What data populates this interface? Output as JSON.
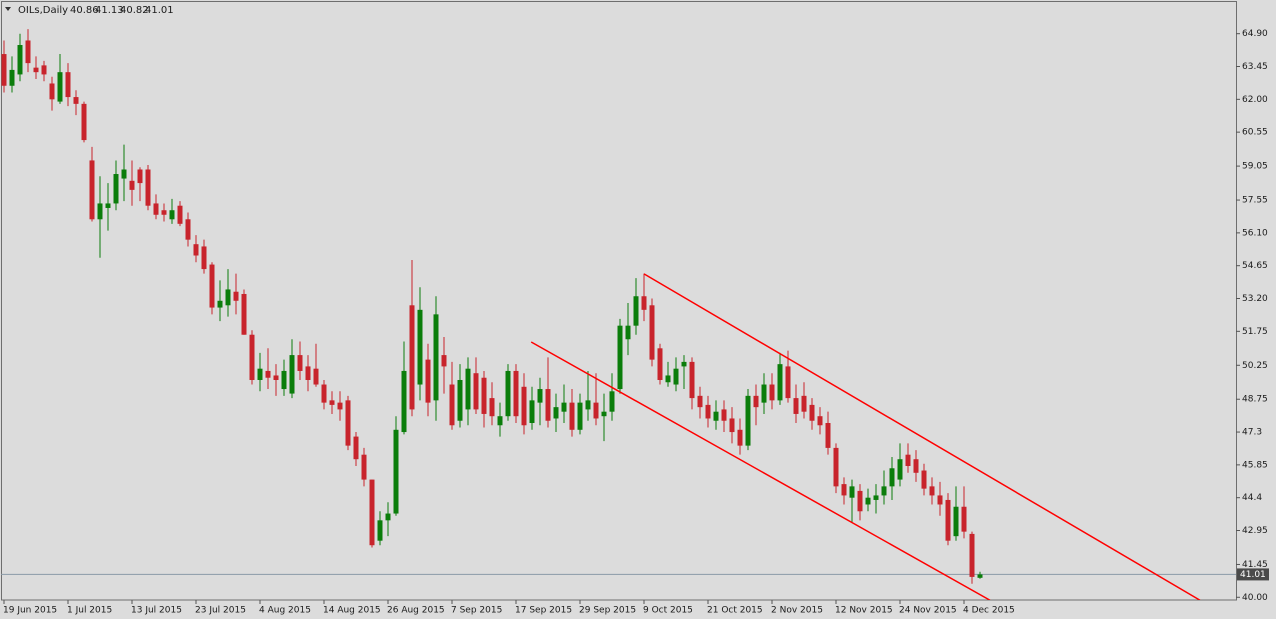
{
  "chart_data": {
    "type": "candlestick",
    "title": "OILs,Daily",
    "categories": [
      "19 Jun 2015",
      null,
      null,
      null,
      null,
      null,
      null,
      null,
      "1 Jul 2015",
      null,
      null,
      null,
      null,
      null,
      null,
      null,
      "13 Jul 2015",
      null,
      null,
      null,
      null,
      null,
      null,
      null,
      "23 Jul 2015",
      null,
      null,
      null,
      null,
      null,
      null,
      null,
      "4 Aug 2015",
      null,
      null,
      null,
      null,
      null,
      null,
      null,
      "14 Aug 2015",
      null,
      null,
      null,
      null,
      null,
      null,
      null,
      "26 Aug 2015",
      null,
      null,
      null,
      null,
      null,
      null,
      null,
      "7 Sep 2015",
      null,
      null,
      null,
      null,
      null,
      null,
      null,
      "17 Sep 2015",
      null,
      null,
      null,
      null,
      null,
      null,
      null,
      "29 Sep 2015",
      null,
      null,
      null,
      null,
      null,
      null,
      null,
      "9 Oct 2015",
      null,
      null,
      null,
      null,
      null,
      null,
      null,
      "21 Oct 2015",
      null,
      null,
      null,
      null,
      null,
      null,
      null,
      "2 Nov 2015",
      null,
      null,
      null,
      null,
      null,
      null,
      null,
      "12 Nov 2015",
      null,
      null,
      null,
      null,
      null,
      null,
      null,
      "24 Nov 2015",
      null,
      null,
      null,
      null,
      null,
      null,
      null,
      "4 Dec 2015",
      null,
      null
    ],
    "open": [
      64.0,
      62.6,
      63.1,
      64.6,
      63.4,
      63.5,
      62.7,
      61.9,
      63.2,
      62.1,
      61.8,
      59.3,
      56.7,
      57.2,
      57.4,
      58.5,
      58.4,
      58.9,
      58.9,
      57.4,
      57.1,
      56.7,
      57.3,
      56.7,
      55.6,
      55.5,
      54.7,
      52.8,
      52.9,
      53.5,
      53.4,
      51.6,
      49.6,
      50.0,
      49.8,
      49.2,
      49.0,
      50.7,
      50.2,
      50.1,
      49.4,
      48.7,
      48.6,
      48.7,
      47.1,
      46.3,
      45.2,
      42.5,
      43.4,
      43.7,
      47.3,
      52.9,
      49.4,
      50.5,
      48.7,
      50.7,
      49.4,
      47.8,
      48.3,
      49.9,
      49.7,
      48.8,
      47.6,
      48.0,
      50.0,
      49.3,
      47.7,
      48.6,
      49.2,
      47.9,
      48.2,
      48.6,
      47.4,
      48.3,
      48.6,
      48.0,
      48.2,
      49.2,
      51.4,
      52.0,
      53.3,
      52.9,
      51.0,
      49.5,
      49.4,
      50.2,
      50.4,
      48.9,
      48.5,
      47.8,
      48.3,
      47.9,
      47.4,
      46.7,
      48.9,
      48.6,
      49.4,
      48.7,
      50.2,
      48.8,
      48.9,
      48.5,
      48.0,
      47.7,
      46.6,
      45.0,
      44.4,
      44.7,
      44.1,
      44.3,
      44.5,
      44.9,
      45.2,
      46.3,
      46.1,
      45.6,
      44.9,
      44.5,
      44.3,
      42.7,
      44.0,
      42.8,
      40.86
    ],
    "high": [
      64.6,
      63.9,
      64.9,
      65.1,
      63.9,
      63.7,
      63.0,
      64.0,
      63.6,
      62.4,
      61.9,
      59.9,
      58.6,
      58.3,
      59.3,
      60.0,
      59.3,
      59.0,
      59.1,
      57.8,
      57.4,
      57.6,
      57.5,
      57.0,
      56.0,
      55.8,
      54.8,
      54.0,
      54.5,
      54.3,
      53.6,
      51.8,
      50.8,
      51.0,
      50.3,
      50.5,
      51.4,
      51.3,
      50.7,
      51.2,
      49.6,
      49.1,
      49.1,
      48.9,
      47.3,
      46.6,
      45.2,
      43.8,
      44.2,
      48.0,
      51.3,
      54.9,
      53.7,
      51.2,
      53.3,
      51.5,
      50.4,
      50.3,
      50.6,
      50.6,
      50.0,
      49.5,
      48.6,
      50.3,
      50.3,
      49.9,
      49.3,
      49.7,
      50.6,
      49.0,
      49.4,
      49.2,
      49.0,
      50.0,
      49.9,
      49.0,
      49.9,
      52.3,
      53.0,
      54.1,
      54.3,
      53.2,
      51.2,
      50.4,
      50.6,
      50.7,
      50.6,
      49.3,
      48.9,
      48.7,
      48.7,
      48.4,
      47.9,
      49.2,
      49.4,
      49.9,
      49.9,
      50.8,
      50.9,
      49.4,
      49.5,
      48.8,
      48.4,
      48.2,
      46.8,
      45.3,
      45.2,
      45.0,
      44.8,
      45.0,
      45.6,
      46.2,
      46.8,
      46.8,
      46.5,
      45.9,
      45.3,
      45.1,
      44.6,
      44.9,
      44.9,
      42.9,
      41.13
    ],
    "low": [
      62.3,
      62.3,
      62.8,
      63.2,
      62.9,
      62.8,
      61.5,
      61.8,
      61.7,
      61.3,
      60.1,
      56.6,
      55.0,
      56.2,
      57.1,
      57.5,
      57.3,
      57.5,
      57.1,
      56.7,
      56.6,
      56.5,
      56.4,
      55.5,
      54.8,
      54.3,
      52.5,
      52.2,
      52.4,
      52.5,
      51.6,
      49.4,
      49.1,
      49.2,
      48.9,
      48.9,
      48.8,
      49.6,
      49.1,
      49.3,
      48.3,
      48.1,
      47.8,
      46.5,
      45.8,
      44.9,
      42.2,
      42.3,
      42.7,
      43.6,
      47.2,
      48.0,
      48.7,
      48.0,
      47.8,
      49.0,
      47.4,
      47.5,
      47.6,
      48.1,
      47.5,
      47.6,
      47.1,
      47.8,
      47.7,
      47.2,
      47.4,
      47.6,
      47.5,
      47.3,
      47.7,
      47.1,
      47.2,
      47.8,
      47.6,
      46.9,
      47.8,
      49.0,
      50.7,
      51.6,
      52.2,
      50.2,
      49.4,
      49.3,
      49.1,
      49.2,
      48.3,
      47.9,
      47.5,
      47.4,
      47.3,
      46.8,
      46.3,
      46.5,
      47.6,
      48.1,
      48.3,
      48.5,
      48.6,
      47.7,
      47.9,
      47.4,
      47.2,
      46.3,
      44.6,
      44.1,
      43.3,
      43.4,
      43.8,
      43.7,
      44.1,
      44.3,
      44.9,
      45.5,
      45.1,
      44.5,
      44.1,
      43.6,
      42.3,
      42.5,
      42.6,
      40.6,
      40.82
    ],
    "close": [
      62.6,
      63.3,
      64.4,
      63.6,
      63.2,
      63.1,
      62.0,
      63.2,
      62.1,
      61.8,
      60.2,
      56.7,
      57.4,
      57.4,
      58.7,
      58.9,
      58.0,
      58.3,
      57.3,
      56.9,
      56.9,
      57.1,
      56.5,
      55.8,
      55.1,
      54.5,
      52.8,
      53.1,
      53.6,
      53.1,
      51.6,
      49.6,
      50.1,
      49.7,
      49.6,
      50.0,
      50.7,
      50.0,
      49.6,
      49.4,
      48.6,
      48.5,
      48.3,
      46.7,
      46.1,
      45.2,
      42.3,
      43.4,
      43.7,
      47.4,
      50.0,
      48.3,
      52.7,
      48.6,
      52.5,
      50.2,
      47.6,
      49.6,
      50.1,
      48.3,
      48.1,
      48.0,
      48.0,
      50.0,
      48.0,
      47.6,
      48.7,
      49.2,
      47.8,
      48.4,
      48.6,
      47.4,
      48.6,
      48.7,
      47.9,
      48.2,
      49.1,
      52.0,
      52.0,
      53.3,
      52.7,
      50.5,
      49.6,
      49.8,
      50.1,
      50.4,
      48.8,
      48.4,
      47.9,
      48.2,
      47.8,
      47.3,
      46.7,
      48.9,
      48.4,
      49.4,
      48.7,
      50.3,
      48.8,
      48.1,
      48.2,
      47.8,
      47.6,
      46.6,
      44.9,
      44.5,
      44.9,
      43.8,
      44.4,
      44.5,
      44.9,
      45.7,
      46.1,
      45.8,
      45.5,
      44.8,
      44.5,
      44.1,
      42.5,
      44.0,
      42.9,
      40.9,
      41.01
    ],
    "up_color": "#0b7d0b",
    "down_color": "#c8242c",
    "ylim": [
      39.88,
      66.3
    ],
    "yticks": [
      {
        "value": 64.9,
        "label": "64.90"
      },
      63.45,
      {
        "value": 62,
        "label": "62.00"
      },
      60.55,
      59.05,
      57.55,
      {
        "value": 56.1,
        "label": "56.10"
      },
      54.65,
      {
        "value": 53.2,
        "label": "53.20"
      },
      51.75,
      50.25,
      48.75,
      47.3,
      45.85,
      44.4,
      42.95,
      41.45,
      {
        "value": 40,
        "label": "40.00"
      }
    ],
    "trendlines": [
      {
        "color": "#ff0000",
        "x": [
          80,
          149.5
        ],
        "y": [
          54.29,
          39.87
        ]
      },
      {
        "color": "#ff0000",
        "x": [
          65.9,
          123.25
        ],
        "y": [
          51.28,
          39.87
        ]
      }
    ]
  }
}
